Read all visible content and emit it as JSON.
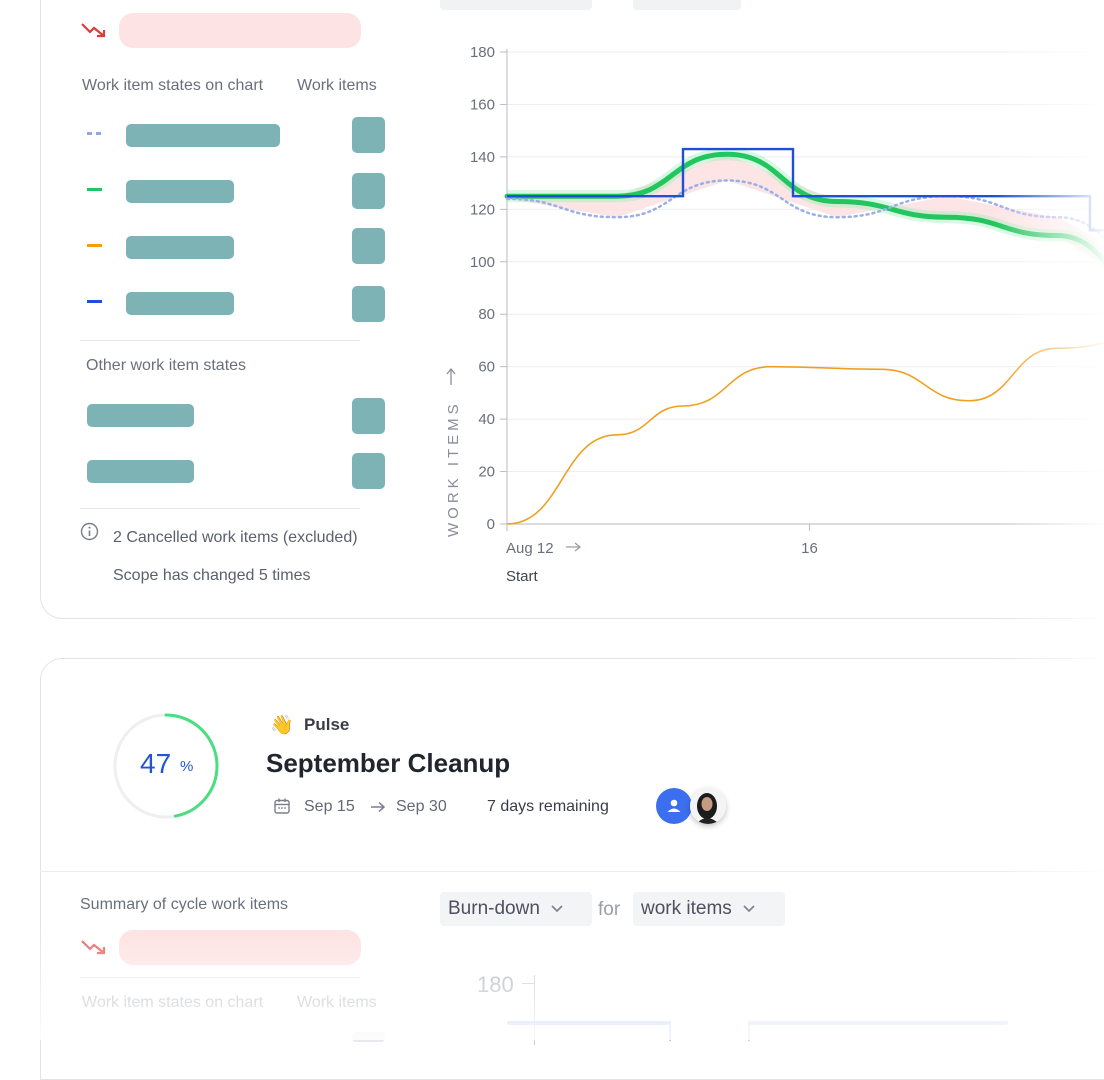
{
  "top_panel": {
    "legend_header": "Work item states on chart",
    "count_header": "Work items",
    "legend_colors": [
      "#8fa6e8",
      "#22c55e",
      "#f59e0b",
      "#1d4fd8"
    ],
    "other_states_header": "Other work item states",
    "cancelled_note": "2 Cancelled work items (excluded)",
    "scope_note": "Scope has changed 5 times",
    "info_icon": "info-icon",
    "trend_icon": "trend-down-icon"
  },
  "chart_data": {
    "type": "line",
    "title": "",
    "ylabel": "WORK ITEMS",
    "ylim": [
      0,
      180
    ],
    "y_ticks": [
      0,
      20,
      40,
      60,
      80,
      100,
      120,
      140,
      160,
      180
    ],
    "x_tick_labels": [
      "Aug 12",
      "16"
    ],
    "x_sublabel": "Start",
    "series": [
      {
        "color": "#22c55e",
        "points": [
          [
            0,
            125
          ],
          [
            1,
            125
          ],
          [
            2,
            141
          ],
          [
            3,
            123
          ],
          [
            4,
            117
          ],
          [
            5,
            110
          ],
          [
            6,
            83
          ]
        ]
      },
      {
        "color": "#9aafe8",
        "style": "dotted",
        "points": [
          [
            0,
            124
          ],
          [
            1,
            117
          ],
          [
            2,
            131
          ],
          [
            3,
            117
          ],
          [
            4,
            125
          ],
          [
            5,
            117
          ],
          [
            6,
            95
          ]
        ]
      },
      {
        "color": "#1d4fd8",
        "style": "step",
        "points": [
          [
            0,
            125
          ],
          [
            1.6,
            125
          ],
          [
            1.6,
            143
          ],
          [
            2.6,
            143
          ],
          [
            2.6,
            125
          ],
          [
            5.3,
            125
          ],
          [
            5.3,
            112
          ],
          [
            6.2,
            112
          ]
        ]
      },
      {
        "color": "#f0a020",
        "points": [
          [
            0,
            0
          ],
          [
            1,
            34
          ],
          [
            1.6,
            45
          ],
          [
            2.4,
            60
          ],
          [
            3.4,
            59
          ],
          [
            4.2,
            47
          ],
          [
            5.0,
            67
          ],
          [
            6,
            73
          ]
        ]
      }
    ]
  },
  "cycle": {
    "progress_value": "47",
    "progress_unit": "%",
    "progress_fraction": 0.47,
    "emoji": "👋",
    "project": "Pulse",
    "title": "September Cleanup",
    "start_date": "Sep 15",
    "end_date": "Sep 30",
    "remaining": "7 days remaining",
    "calendar_icon": "calendar-icon",
    "arrow_icon": "arrow-right-icon"
  },
  "bottom_panel": {
    "summary_header": "Summary of cycle work items",
    "legend_header": "Work item states on chart",
    "count_header": "Work items",
    "chart_type_dropdown": "Burn-down",
    "for_label": "for",
    "metric_dropdown": "work items",
    "y_first_tick": "180"
  }
}
